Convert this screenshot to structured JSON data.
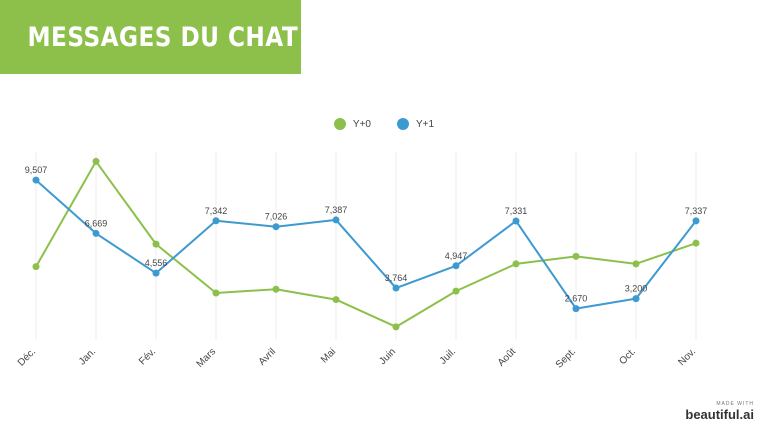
{
  "header": {
    "title": "MESSAGES DU CHAT"
  },
  "colors": {
    "banner": "#8dc04a",
    "y0": "#8dc04a",
    "y1": "#3d9ad1",
    "grid": "#eeeeee"
  },
  "footer": {
    "made_with": "MADE WITH",
    "brand": "beautiful.ai"
  },
  "chart_data": {
    "type": "line",
    "categories": [
      "Déc.",
      "Jan.",
      "Fév.",
      "Mars",
      "Avril",
      "Mai",
      "Juin",
      "Juil.",
      "Août",
      "Sept.",
      "Oct.",
      "Nov."
    ],
    "legend": "top-center",
    "grid": "vertical",
    "ylim": [
      1000,
      11000
    ],
    "series": [
      {
        "name": "Y+0",
        "color": "#8dc04a",
        "values": [
          4900,
          10500,
          6100,
          3500,
          3700,
          3150,
          1700,
          3600,
          5050,
          5450,
          5050,
          6150
        ],
        "labels": []
      },
      {
        "name": "Y+1",
        "color": "#3d9ad1",
        "values": [
          9507,
          6669,
          4556,
          7342,
          7026,
          7387,
          3764,
          4947,
          7331,
          2670,
          3200,
          7337
        ],
        "labels": [
          "9,507",
          "6,669",
          "4,556",
          "7,342",
          "7,026",
          "7,387",
          "3,764",
          "4,947",
          "7,331",
          "2,670",
          "3,200",
          "7,337"
        ]
      }
    ]
  }
}
